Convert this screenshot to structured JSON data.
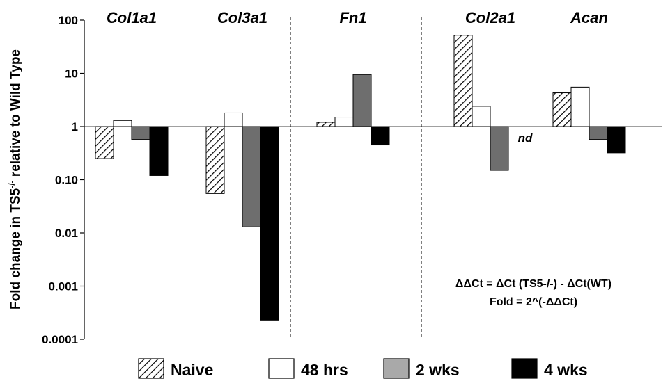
{
  "chart_data": {
    "type": "bar",
    "yscale": "log",
    "ylim": [
      0.0001,
      100
    ],
    "ylabel_main": "Fold change in TS5",
    "ylabel_sup": "-/-",
    "ylabel_rest": " relative to Wild Type",
    "yticks": [
      {
        "value": 100,
        "label": "100"
      },
      {
        "value": 10,
        "label": "10"
      },
      {
        "value": 1,
        "label": "1"
      },
      {
        "value": 0.1,
        "label": "0.10"
      },
      {
        "value": 0.01,
        "label": "0.01"
      },
      {
        "value": 0.001,
        "label": "0.001"
      },
      {
        "value": 0.0001,
        "label": "0.0001"
      }
    ],
    "baseline": 1,
    "categories": [
      "Col1a1",
      "Col3a1",
      "Fn1",
      "Col2a1",
      "Acan"
    ],
    "series": [
      {
        "name": "Naive",
        "values": [
          0.25,
          0.055,
          1.2,
          52,
          4.3
        ]
      },
      {
        "name": "48 hrs",
        "values": [
          1.3,
          1.8,
          1.5,
          2.4,
          5.5
        ]
      },
      {
        "name": "2 wks",
        "values": [
          0.57,
          0.013,
          9.5,
          0.15,
          0.57
        ]
      },
      {
        "name": "4 wks",
        "values": [
          0.12,
          0.00023,
          0.45,
          null,
          0.32
        ]
      }
    ],
    "annotations": {
      "nd": "nd",
      "formula_line1": "ΔΔCt = ΔCt (TS5-/-) - ΔCt(WT)",
      "formula_line2": "Fold = 2^(-ΔΔCt)"
    },
    "dividers": "dashed vertical lines between Col3a1|Fn1 and Fn1|Col2a1",
    "legend_position": "bottom",
    "grid": false
  },
  "colors": {
    "naive": "hatched",
    "48 hrs": "#ffffff",
    "2 wks": "#6e6e6e",
    "4 wks": "#000000",
    "legend_2wks": "#a9a9a9"
  }
}
